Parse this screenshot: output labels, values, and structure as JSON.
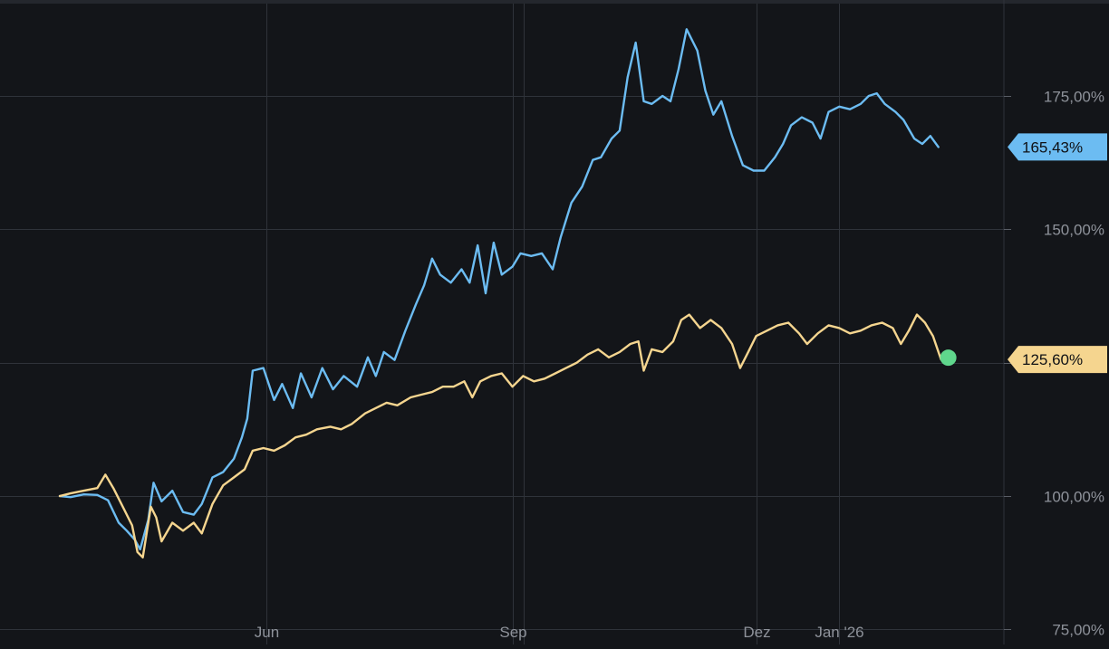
{
  "chart_data": {
    "type": "line",
    "title": "",
    "xlabel": "",
    "ylabel": "",
    "ylim": [
      75,
      197
    ],
    "grid": true,
    "legend": "none",
    "x_ticks": [
      {
        "label": "Jun",
        "date": "2025-06-01"
      },
      {
        "label": "Sep",
        "date": "2025-09-01"
      },
      {
        "label": "Dez",
        "date": "2025-12-01"
      },
      {
        "label": "Jan '26",
        "date": "2026-01-01"
      }
    ],
    "y_ticks": [
      {
        "label": "75,00%",
        "value": 75
      },
      {
        "label": "100,00%",
        "value": 100
      },
      {
        "label": "125,00%",
        "value": 125
      },
      {
        "label": "150,00%",
        "value": 150
      },
      {
        "label": "175,00%",
        "value": 175
      }
    ],
    "series": [
      {
        "color": "#6cbcf2",
        "last_label": "165,43%",
        "points": [
          [
            "2025-03-16",
            100.0
          ],
          [
            "2025-03-20",
            99.8
          ],
          [
            "2025-03-25",
            100.3
          ],
          [
            "2025-03-30",
            100.2
          ],
          [
            "2025-04-03",
            99.2
          ],
          [
            "2025-04-07",
            95.0
          ],
          [
            "2025-04-10",
            93.5
          ],
          [
            "2025-04-13",
            91.8
          ],
          [
            "2025-04-15",
            90.0
          ],
          [
            "2025-04-18",
            95.5
          ],
          [
            "2025-04-20",
            102.5
          ],
          [
            "2025-04-23",
            99.0
          ],
          [
            "2025-04-27",
            101.0
          ],
          [
            "2025-05-01",
            97.0
          ],
          [
            "2025-05-05",
            96.5
          ],
          [
            "2025-05-08",
            98.5
          ],
          [
            "2025-05-12",
            103.5
          ],
          [
            "2025-05-16",
            104.5
          ],
          [
            "2025-05-20",
            107.0
          ],
          [
            "2025-05-23",
            111.0
          ],
          [
            "2025-05-25",
            114.5
          ],
          [
            "2025-05-27",
            123.5
          ],
          [
            "2025-05-31",
            124.0
          ],
          [
            "2025-06-04",
            118.0
          ],
          [
            "2025-06-07",
            121.0
          ],
          [
            "2025-06-11",
            116.5
          ],
          [
            "2025-06-14",
            123.0
          ],
          [
            "2025-06-18",
            118.5
          ],
          [
            "2025-06-22",
            124.0
          ],
          [
            "2025-06-26",
            120.0
          ],
          [
            "2025-06-30",
            122.5
          ],
          [
            "2025-07-05",
            120.5
          ],
          [
            "2025-07-09",
            126.0
          ],
          [
            "2025-07-12",
            122.5
          ],
          [
            "2025-07-15",
            127.0
          ],
          [
            "2025-07-19",
            125.5
          ],
          [
            "2025-07-23",
            131.0
          ],
          [
            "2025-07-27",
            136.0
          ],
          [
            "2025-07-30",
            139.5
          ],
          [
            "2025-08-02",
            144.5
          ],
          [
            "2025-08-05",
            141.5
          ],
          [
            "2025-08-09",
            140.0
          ],
          [
            "2025-08-13",
            142.5
          ],
          [
            "2025-08-16",
            140.0
          ],
          [
            "2025-08-19",
            147.0
          ],
          [
            "2025-08-22",
            138.0
          ],
          [
            "2025-08-25",
            147.5
          ],
          [
            "2025-08-28",
            141.5
          ],
          [
            "2025-09-01",
            143.0
          ],
          [
            "2025-09-04",
            145.5
          ],
          [
            "2025-09-08",
            145.0
          ],
          [
            "2025-09-12",
            145.5
          ],
          [
            "2025-09-16",
            142.5
          ],
          [
            "2025-09-19",
            148.5
          ],
          [
            "2025-09-23",
            155.0
          ],
          [
            "2025-09-27",
            158.0
          ],
          [
            "2025-10-01",
            163.0
          ],
          [
            "2025-10-04",
            163.5
          ],
          [
            "2025-10-08",
            167.0
          ],
          [
            "2025-10-11",
            168.5
          ],
          [
            "2025-10-14",
            178.5
          ],
          [
            "2025-10-17",
            185.0
          ],
          [
            "2025-10-20",
            174.0
          ],
          [
            "2025-10-23",
            173.5
          ],
          [
            "2025-10-27",
            175.0
          ],
          [
            "2025-10-30",
            174.0
          ],
          [
            "2025-11-02",
            180.0
          ],
          [
            "2025-11-05",
            187.5
          ],
          [
            "2025-11-09",
            183.5
          ],
          [
            "2025-11-12",
            176.0
          ],
          [
            "2025-11-15",
            171.5
          ],
          [
            "2025-11-18",
            174.0
          ],
          [
            "2025-11-22",
            167.5
          ],
          [
            "2025-11-26",
            162.0
          ],
          [
            "2025-11-30",
            161.0
          ],
          [
            "2025-12-04",
            161.0
          ],
          [
            "2025-12-08",
            163.5
          ],
          [
            "2025-12-11",
            166.0
          ],
          [
            "2025-12-14",
            169.5
          ],
          [
            "2025-12-18",
            171.0
          ],
          [
            "2025-12-22",
            170.0
          ],
          [
            "2025-12-25",
            167.0
          ],
          [
            "2025-12-28",
            172.0
          ],
          [
            "2026-01-01",
            173.0
          ],
          [
            "2026-01-05",
            172.5
          ],
          [
            "2026-01-09",
            173.5
          ],
          [
            "2026-01-12",
            175.0
          ],
          [
            "2026-01-15",
            175.5
          ],
          [
            "2026-01-18",
            173.5
          ],
          [
            "2026-01-22",
            172.0
          ],
          [
            "2026-01-25",
            170.5
          ],
          [
            "2026-01-29",
            167.0
          ],
          [
            "2026-02-01",
            166.0
          ],
          [
            "2026-02-04",
            167.5
          ],
          [
            "2026-02-07",
            165.43
          ]
        ]
      },
      {
        "color": "#f5d58f",
        "last_label": "125,60%",
        "points": [
          [
            "2025-03-16",
            100.0
          ],
          [
            "2025-03-20",
            100.5
          ],
          [
            "2025-03-25",
            101.0
          ],
          [
            "2025-03-30",
            101.5
          ],
          [
            "2025-04-02",
            104.0
          ],
          [
            "2025-04-05",
            101.5
          ],
          [
            "2025-04-08",
            98.5
          ],
          [
            "2025-04-12",
            94.5
          ],
          [
            "2025-04-14",
            89.5
          ],
          [
            "2025-04-16",
            88.5
          ],
          [
            "2025-04-19",
            98.0
          ],
          [
            "2025-04-21",
            96.0
          ],
          [
            "2025-04-23",
            91.5
          ],
          [
            "2025-04-27",
            95.0
          ],
          [
            "2025-05-01",
            93.5
          ],
          [
            "2025-05-05",
            95.0
          ],
          [
            "2025-05-08",
            93.0
          ],
          [
            "2025-05-12",
            98.5
          ],
          [
            "2025-05-16",
            102.0
          ],
          [
            "2025-05-20",
            103.5
          ],
          [
            "2025-05-24",
            105.0
          ],
          [
            "2025-05-27",
            108.5
          ],
          [
            "2025-05-31",
            109.0
          ],
          [
            "2025-06-04",
            108.5
          ],
          [
            "2025-06-08",
            109.5
          ],
          [
            "2025-06-12",
            111.0
          ],
          [
            "2025-06-16",
            111.5
          ],
          [
            "2025-06-20",
            112.5
          ],
          [
            "2025-06-25",
            113.0
          ],
          [
            "2025-06-29",
            112.5
          ],
          [
            "2025-07-03",
            113.5
          ],
          [
            "2025-07-08",
            115.5
          ],
          [
            "2025-07-12",
            116.5
          ],
          [
            "2025-07-16",
            117.5
          ],
          [
            "2025-07-20",
            117.0
          ],
          [
            "2025-07-25",
            118.5
          ],
          [
            "2025-07-29",
            119.0
          ],
          [
            "2025-08-02",
            119.5
          ],
          [
            "2025-08-06",
            120.5
          ],
          [
            "2025-08-10",
            120.5
          ],
          [
            "2025-08-14",
            121.5
          ],
          [
            "2025-08-17",
            118.5
          ],
          [
            "2025-08-20",
            121.5
          ],
          [
            "2025-08-24",
            122.5
          ],
          [
            "2025-08-28",
            123.0
          ],
          [
            "2025-09-01",
            120.5
          ],
          [
            "2025-09-05",
            122.5
          ],
          [
            "2025-09-09",
            121.5
          ],
          [
            "2025-09-13",
            122.0
          ],
          [
            "2025-09-17",
            123.0
          ],
          [
            "2025-09-21",
            124.0
          ],
          [
            "2025-09-25",
            125.0
          ],
          [
            "2025-09-29",
            126.5
          ],
          [
            "2025-10-03",
            127.5
          ],
          [
            "2025-10-07",
            126.0
          ],
          [
            "2025-10-11",
            127.0
          ],
          [
            "2025-10-15",
            128.5
          ],
          [
            "2025-10-18",
            129.0
          ],
          [
            "2025-10-20",
            123.5
          ],
          [
            "2025-10-23",
            127.5
          ],
          [
            "2025-10-27",
            127.0
          ],
          [
            "2025-10-31",
            129.0
          ],
          [
            "2025-11-03",
            133.0
          ],
          [
            "2025-11-06",
            134.0
          ],
          [
            "2025-11-10",
            131.5
          ],
          [
            "2025-11-14",
            133.0
          ],
          [
            "2025-11-18",
            131.5
          ],
          [
            "2025-11-22",
            128.5
          ],
          [
            "2025-11-25",
            124.0
          ],
          [
            "2025-11-28",
            127.0
          ],
          [
            "2025-12-01",
            130.0
          ],
          [
            "2025-12-05",
            131.0
          ],
          [
            "2025-12-09",
            132.0
          ],
          [
            "2025-12-13",
            132.5
          ],
          [
            "2025-12-17",
            130.5
          ],
          [
            "2025-12-20",
            128.5
          ],
          [
            "2025-12-24",
            130.5
          ],
          [
            "2025-12-28",
            132.0
          ],
          [
            "2026-01-01",
            131.5
          ],
          [
            "2026-01-05",
            130.5
          ],
          [
            "2026-01-09",
            131.0
          ],
          [
            "2026-01-13",
            132.0
          ],
          [
            "2026-01-17",
            132.5
          ],
          [
            "2026-01-21",
            131.5
          ],
          [
            "2026-01-24",
            128.5
          ],
          [
            "2026-01-27",
            131.0
          ],
          [
            "2026-01-30",
            134.0
          ],
          [
            "2026-02-02",
            132.5
          ],
          [
            "2026-02-05",
            130.0
          ],
          [
            "2026-02-08",
            125.6
          ]
        ]
      }
    ]
  }
}
